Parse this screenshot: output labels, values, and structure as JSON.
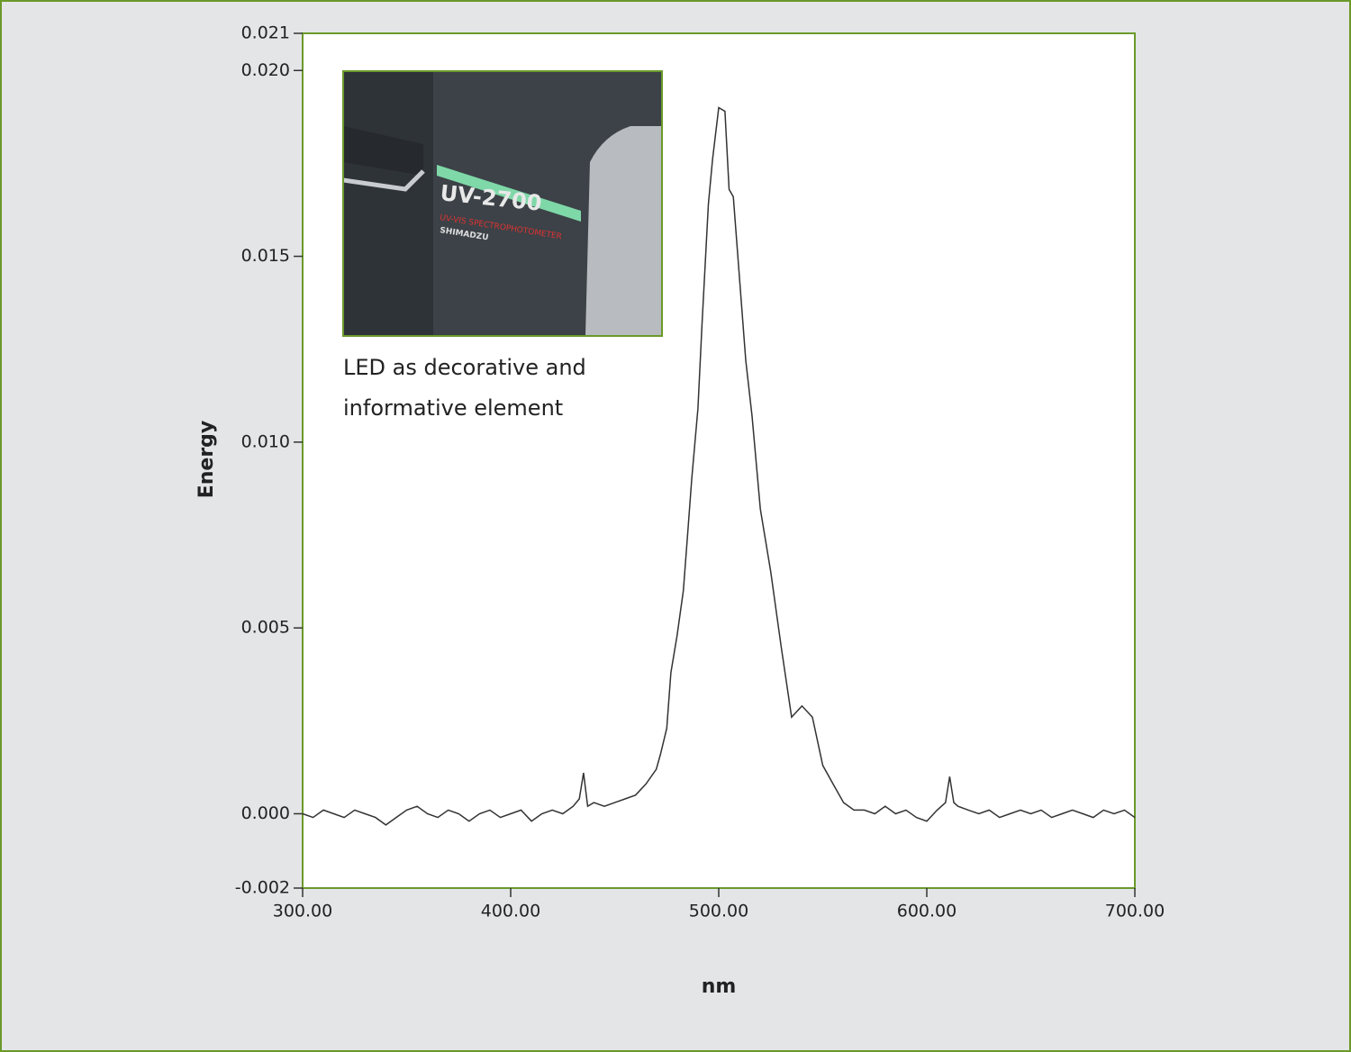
{
  "chart_data": {
    "type": "line",
    "xlabel": "nm",
    "ylabel": "Energy",
    "xlim": [
      300,
      700
    ],
    "ylim": [
      -0.002,
      0.021
    ],
    "xticks": [
      {
        "value": 300,
        "label": "300.00"
      },
      {
        "value": 400,
        "label": "400.00"
      },
      {
        "value": 500,
        "label": "500.00"
      },
      {
        "value": 600,
        "label": "600.00"
      },
      {
        "value": 700,
        "label": "700.00"
      }
    ],
    "yticks": [
      -0.002,
      {
        "value": 0,
        "label": "0.000"
      },
      0.005,
      {
        "value": 0.01,
        "label": "0.010"
      },
      0.015,
      {
        "value": 0.02,
        "label": "0.020"
      },
      0.021
    ],
    "inset": {
      "model": "UV-2700",
      "subtitle": "UV-VIS SPECTROPHOTOMETER",
      "brand": "SHIMADZU",
      "caption": [
        "LED as decorative and",
        "informative element"
      ]
    },
    "x": [
      300,
      305,
      310,
      315,
      320,
      325,
      330,
      335,
      340,
      345,
      350,
      355,
      360,
      365,
      370,
      375,
      380,
      385,
      390,
      395,
      400,
      405,
      410,
      415,
      420,
      425,
      430,
      433,
      435,
      437,
      440,
      445,
      450,
      455,
      460,
      465,
      470,
      472,
      475,
      477,
      480,
      483,
      485,
      487,
      490,
      492,
      495,
      497,
      500,
      503,
      505,
      507,
      510,
      513,
      516,
      520,
      525,
      530,
      535,
      540,
      545,
      550,
      555,
      560,
      565,
      570,
      575,
      580,
      585,
      590,
      595,
      600,
      605,
      609,
      611,
      613,
      615,
      620,
      625,
      630,
      635,
      640,
      645,
      650,
      655,
      660,
      665,
      670,
      675,
      680,
      685,
      690,
      695,
      700
    ],
    "series": [
      {
        "name": "Energy",
        "color": "#333333",
        "values": [
          0.0,
          -0.0001,
          0.0001,
          0.0,
          -0.0001,
          0.0001,
          0.0,
          -0.0001,
          -0.0003,
          -0.0001,
          0.0001,
          0.0002,
          0.0,
          -0.0001,
          0.0001,
          0.0,
          -0.0002,
          0.0,
          0.0001,
          -0.0001,
          0.0,
          0.0001,
          -0.0002,
          0.0,
          0.0001,
          0.0,
          0.0002,
          0.0004,
          0.0011,
          0.0002,
          0.0003,
          0.0002,
          0.0003,
          0.0004,
          0.0005,
          0.0008,
          0.0012,
          0.0016,
          0.0023,
          0.0038,
          0.0048,
          0.006,
          0.0075,
          0.009,
          0.0109,
          0.0132,
          0.0164,
          0.0176,
          0.019,
          0.0189,
          0.0168,
          0.0166,
          0.0144,
          0.0122,
          0.0107,
          0.0082,
          0.0065,
          0.0045,
          0.0026,
          0.0029,
          0.0026,
          0.0013,
          0.0008,
          0.0003,
          0.0001,
          0.0001,
          0.0,
          0.0002,
          0.0,
          0.0001,
          -0.0001,
          -0.0002,
          0.0001,
          0.0003,
          0.001,
          0.0003,
          0.0002,
          0.0001,
          0.0,
          0.0001,
          -0.0001,
          0.0,
          0.0001,
          0.0,
          0.0001,
          -0.0001,
          0.0,
          0.0001,
          0.0,
          -0.0001,
          0.0001,
          0.0,
          0.0001,
          -0.0001
        ]
      }
    ]
  }
}
